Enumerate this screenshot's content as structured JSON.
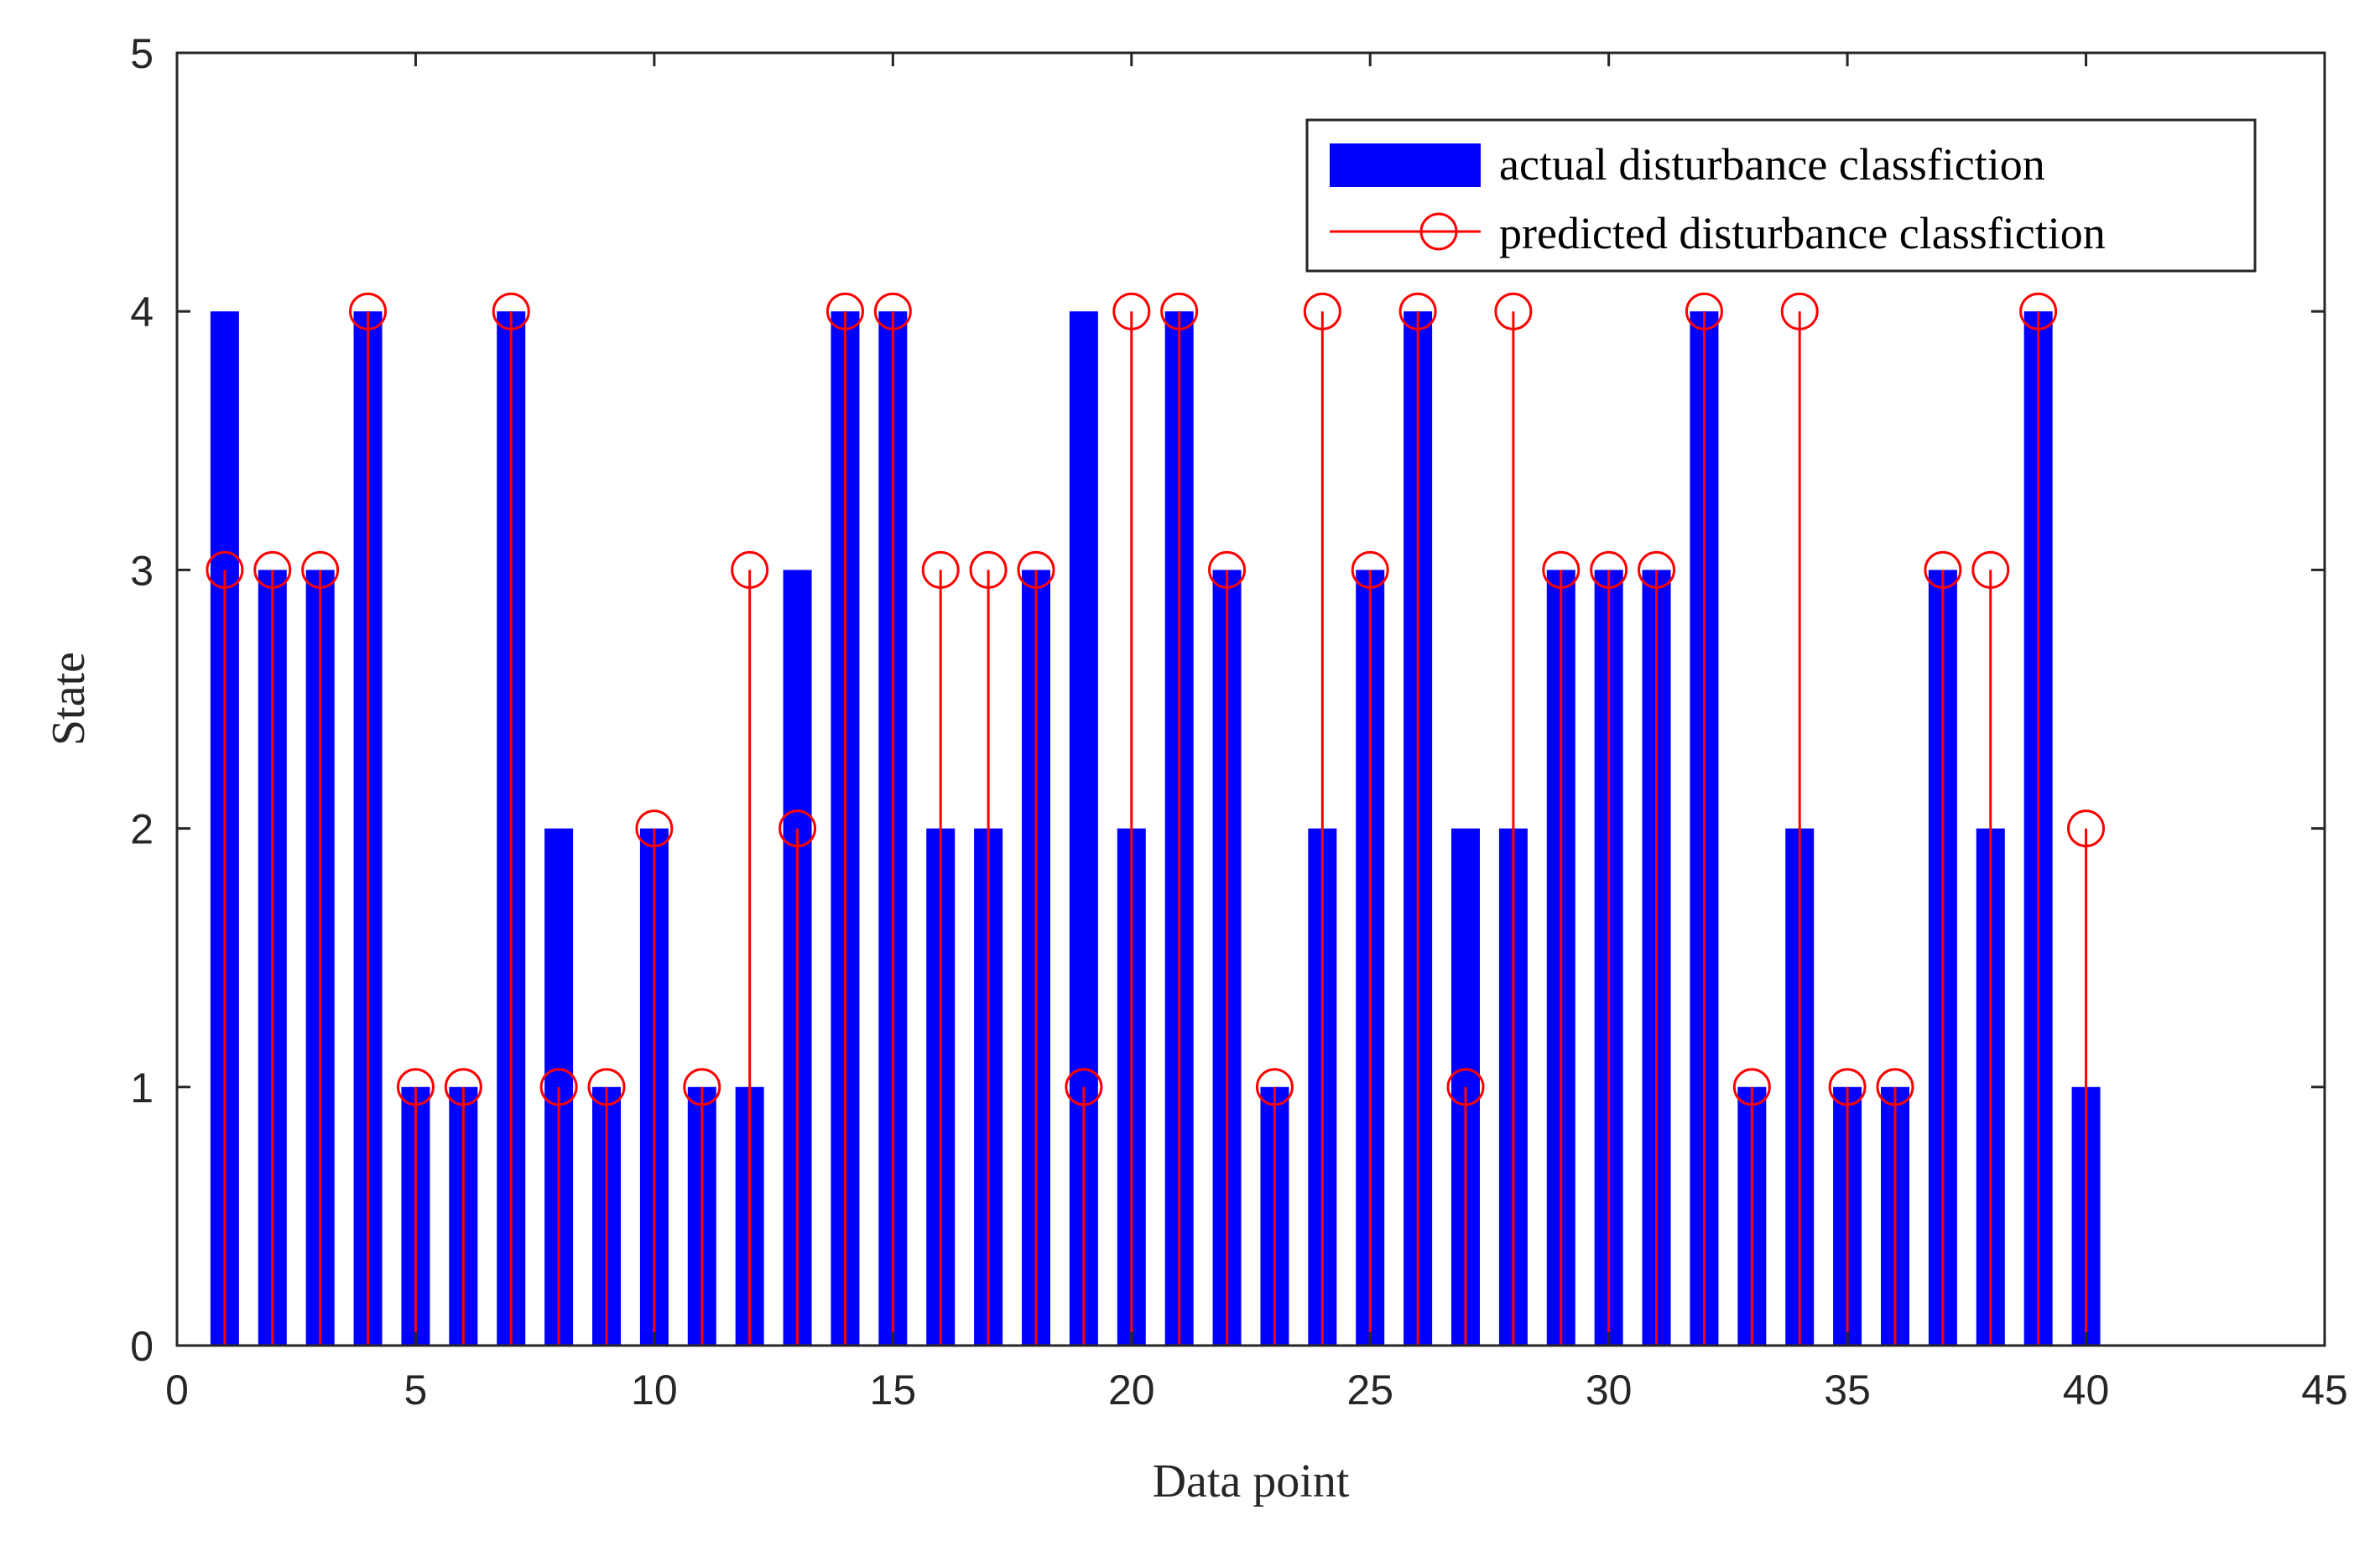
{
  "colors": {
    "actual": "#0000ff",
    "predicted": "#ff0000",
    "axis": "#262626",
    "background": "#ffffff"
  },
  "chart_data": {
    "type": "bar",
    "xlabel": "Data point",
    "ylabel": "State",
    "xlim": [
      0,
      45
    ],
    "ylim": [
      0,
      5
    ],
    "xticks": [
      0,
      5,
      10,
      15,
      20,
      25,
      30,
      35,
      40,
      45
    ],
    "yticks": [
      0,
      1,
      2,
      3,
      4,
      5
    ],
    "grid": false,
    "legend_position": "top-right",
    "x": [
      1,
      2,
      3,
      4,
      5,
      6,
      7,
      8,
      9,
      10,
      11,
      12,
      13,
      14,
      15,
      16,
      17,
      18,
      19,
      20,
      21,
      22,
      23,
      24,
      25,
      26,
      27,
      28,
      29,
      30,
      31,
      32,
      33,
      34,
      35,
      36,
      37,
      38,
      39,
      40
    ],
    "series": [
      {
        "name": "actual disturbance classfiction",
        "style": "bar",
        "values": [
          4,
          3,
          3,
          4,
          1,
          1,
          4,
          2,
          1,
          2,
          1,
          1,
          3,
          4,
          4,
          2,
          2,
          3,
          4,
          2,
          4,
          3,
          1,
          2,
          3,
          4,
          2,
          2,
          3,
          3,
          3,
          4,
          1,
          2,
          1,
          1,
          3,
          2,
          4,
          1
        ]
      },
      {
        "name": "predicted disturbance classfiction",
        "style": "stem",
        "values": [
          3,
          3,
          3,
          4,
          1,
          1,
          4,
          1,
          1,
          2,
          1,
          3,
          2,
          4,
          4,
          3,
          3,
          3,
          1,
          4,
          4,
          3,
          1,
          4,
          3,
          4,
          1,
          4,
          3,
          3,
          3,
          4,
          1,
          4,
          1,
          1,
          3,
          3,
          4,
          2
        ]
      }
    ]
  }
}
